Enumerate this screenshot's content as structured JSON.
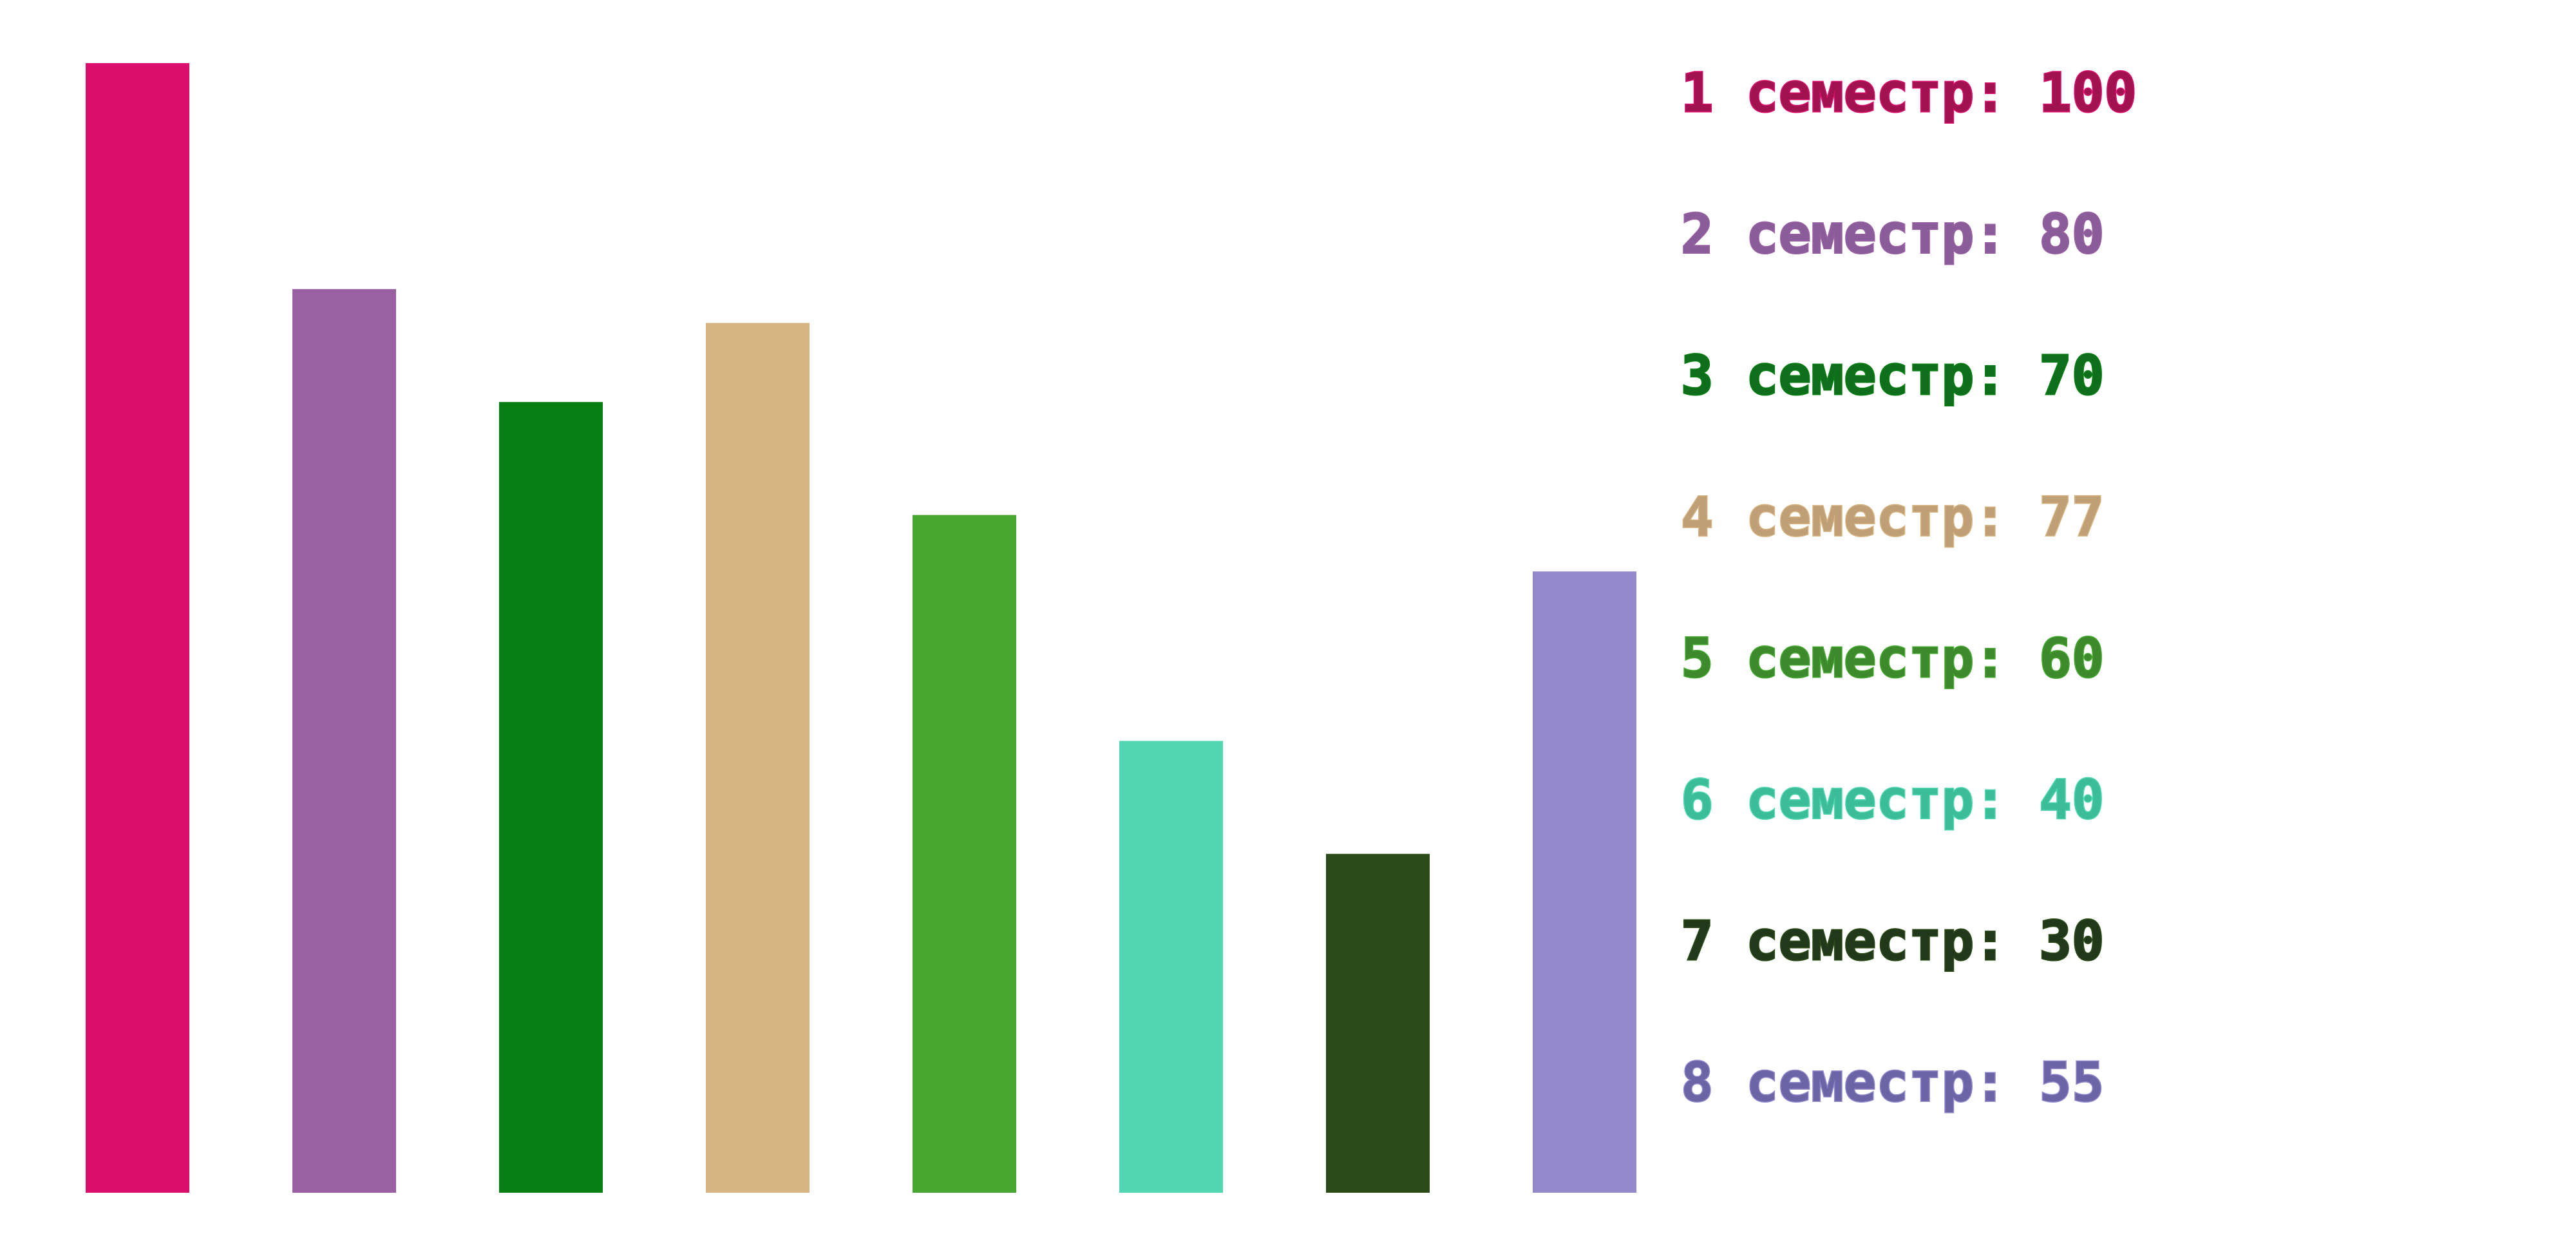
{
  "chart_data": {
    "type": "bar",
    "categories": [
      "1 семестр",
      "2 семестр",
      "3 семестр",
      "4 семестр",
      "5 семестр",
      "6 семестр",
      "7 семестр",
      "8 семестр"
    ],
    "values": [
      100,
      80,
      70,
      77,
      60,
      40,
      30,
      55
    ],
    "ylim": [
      0,
      100
    ],
    "legend_position": "right",
    "title": "",
    "xlabel": "",
    "ylabel": "",
    "grid": false,
    "colors": [
      "#dc0e6d",
      "#9960a2",
      "#087f12",
      "#d6b582",
      "#46a831",
      "#52d7b2",
      "#2b4b18",
      "#9288ca"
    ],
    "text_colors": [
      "#a01250",
      "#8a5c9a",
      "#0f6e1c",
      "#c19f76",
      "#3c8a2b",
      "#3bbd98",
      "#22381a",
      "#6b64a5"
    ],
    "legend": [
      {
        "label": "1 семестр: 100"
      },
      {
        "label": "2 семестр: 80"
      },
      {
        "label": "3 семестр: 70"
      },
      {
        "label": "4 семестр: 77"
      },
      {
        "label": "5 семестр: 60"
      },
      {
        "label": "6 семестр: 40"
      },
      {
        "label": "7 семестр: 30"
      },
      {
        "label": "8 семестр: 55"
      }
    ]
  }
}
